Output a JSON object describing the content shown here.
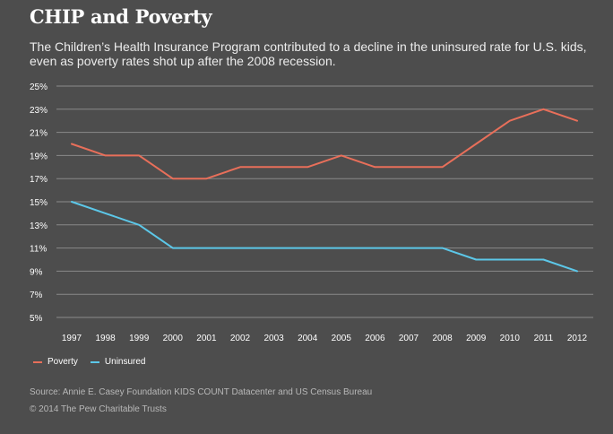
{
  "colors": {
    "background": "#4d4d4d",
    "grid": "#8a8a8a",
    "poverty": "#e86f5a",
    "uninsured": "#5cc7e8"
  },
  "chart_data": {
    "type": "line",
    "title": "CHIP and Poverty",
    "subtitle": "The Children’s Health Insurance Program contributed to a decline in the uninsured rate for U.S. kids, even as poverty rates shot up after the 2008 recession.",
    "x": [
      1997,
      1998,
      1999,
      2000,
      2001,
      2002,
      2003,
      2004,
      2005,
      2006,
      2007,
      2008,
      2009,
      2010,
      2011,
      2012
    ],
    "x_tick_labels": [
      "1997",
      "1998",
      "1999",
      "2000",
      "2001",
      "2002",
      "2003",
      "2004",
      "2005",
      "2006",
      "2007",
      "2008",
      "2009",
      "2010",
      "2011",
      "2012"
    ],
    "y_tick_labels": [
      "25%",
      "23%",
      "21%",
      "19%",
      "17%",
      "15%",
      "13%",
      "11%",
      "9%",
      "7%",
      "5%"
    ],
    "y_ticks": [
      25,
      23,
      21,
      19,
      17,
      15,
      13,
      11,
      9,
      7,
      5
    ],
    "ylim": [
      5,
      25
    ],
    "grid": true,
    "legend_position": "bottom-left",
    "series": [
      {
        "name": "Poverty",
        "color_key": "poverty",
        "values": [
          20,
          19,
          19,
          17,
          17,
          18,
          18,
          18,
          19,
          18,
          18,
          18,
          20,
          22,
          23,
          22
        ]
      },
      {
        "name": "Uninsured",
        "color_key": "uninsured",
        "values": [
          15,
          14,
          13,
          11,
          11,
          11,
          11,
          11,
          11,
          11,
          11,
          11,
          10,
          10,
          10,
          9
        ]
      }
    ],
    "source": "Source: Annie E. Casey Foundation KIDS COUNT Datacenter and US Census Bureau",
    "copyright": "© 2014 The Pew Charitable Trusts"
  }
}
